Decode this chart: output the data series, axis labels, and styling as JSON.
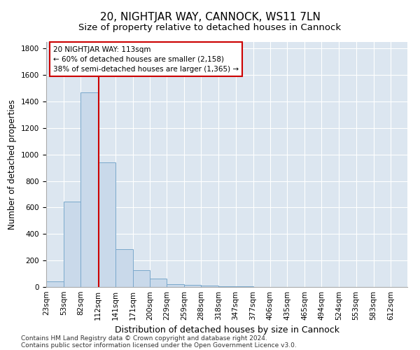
{
  "title": "20, NIGHTJAR WAY, CANNOCK, WS11 7LN",
  "subtitle": "Size of property relative to detached houses in Cannock",
  "xlabel": "Distribution of detached houses by size in Cannock",
  "ylabel": "Number of detached properties",
  "bins": [
    23,
    53,
    82,
    112,
    141,
    171,
    200,
    229,
    259,
    288,
    318,
    347,
    377,
    406,
    435,
    465,
    494,
    524,
    553,
    583,
    612
  ],
  "values": [
    40,
    645,
    1470,
    940,
    285,
    128,
    62,
    22,
    14,
    8,
    5,
    3,
    2,
    2,
    1,
    1,
    0,
    0,
    0,
    0
  ],
  "bar_color": "#c9d9ea",
  "bar_edge_color": "#7aa8cc",
  "property_line_x": 113,
  "property_line_color": "#cc0000",
  "annotation_line1": "20 NIGHTJAR WAY: 113sqm",
  "annotation_line2": "← 60% of detached houses are smaller (2,158)",
  "annotation_line3": "38% of semi-detached houses are larger (1,365) →",
  "annotation_box_color": "#ffffff",
  "annotation_box_edge_color": "#cc0000",
  "ylim": [
    0,
    1850
  ],
  "yticks": [
    0,
    200,
    400,
    600,
    800,
    1000,
    1200,
    1400,
    1600,
    1800
  ],
  "bg_color": "#dce6f0",
  "footer_line1": "Contains HM Land Registry data © Crown copyright and database right 2024.",
  "footer_line2": "Contains public sector information licensed under the Open Government Licence v3.0.",
  "title_fontsize": 11,
  "subtitle_fontsize": 9.5,
  "xlabel_fontsize": 9,
  "ylabel_fontsize": 8.5,
  "tick_fontsize": 7.5,
  "annotation_fontsize": 7.5,
  "footer_fontsize": 6.5
}
